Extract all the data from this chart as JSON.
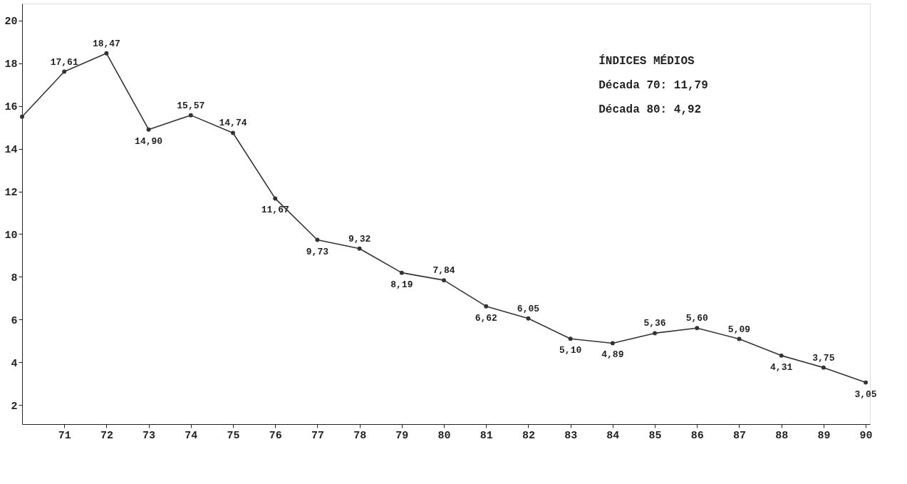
{
  "chart_data": {
    "type": "line",
    "x": [
      70,
      71,
      72,
      73,
      74,
      75,
      76,
      77,
      78,
      79,
      80,
      81,
      82,
      83,
      84,
      85,
      86,
      87,
      88,
      89,
      90
    ],
    "series": [
      {
        "color": "#333333",
        "values": [
          15.5,
          17.61,
          18.47,
          14.9,
          15.57,
          14.74,
          11.67,
          9.73,
          9.32,
          8.19,
          7.84,
          6.62,
          6.05,
          5.1,
          4.89,
          5.36,
          5.6,
          5.09,
          4.31,
          3.75,
          3.05
        ],
        "value_labels": [
          null,
          "17,61",
          "18,47",
          "14,90",
          "15,57",
          "14,74",
          "11,67",
          "9,73",
          "9,32",
          "8,19",
          "7,84",
          "6,62",
          "6,05",
          "5,10",
          "4,89",
          "5,36",
          "5,60",
          "5,09",
          "4,31",
          "3,75",
          "3,05"
        ]
      }
    ],
    "xlim": [
      70,
      90.1
    ],
    "xticks": [
      71,
      72,
      73,
      74,
      75,
      76,
      77,
      78,
      79,
      80,
      81,
      82,
      83,
      84,
      85,
      86,
      87,
      88,
      89,
      90
    ],
    "ylim": [
      1.1,
      20.8
    ],
    "yticks": [
      2,
      4,
      6,
      8,
      10,
      12,
      14,
      16,
      18,
      20
    ],
    "annotations": [
      "ÍNDICES MÉDIOS",
      "Década 70: 11,79",
      "Década 80:  4,92"
    ],
    "grid": false,
    "marker": "circle",
    "line_style": "solid"
  }
}
